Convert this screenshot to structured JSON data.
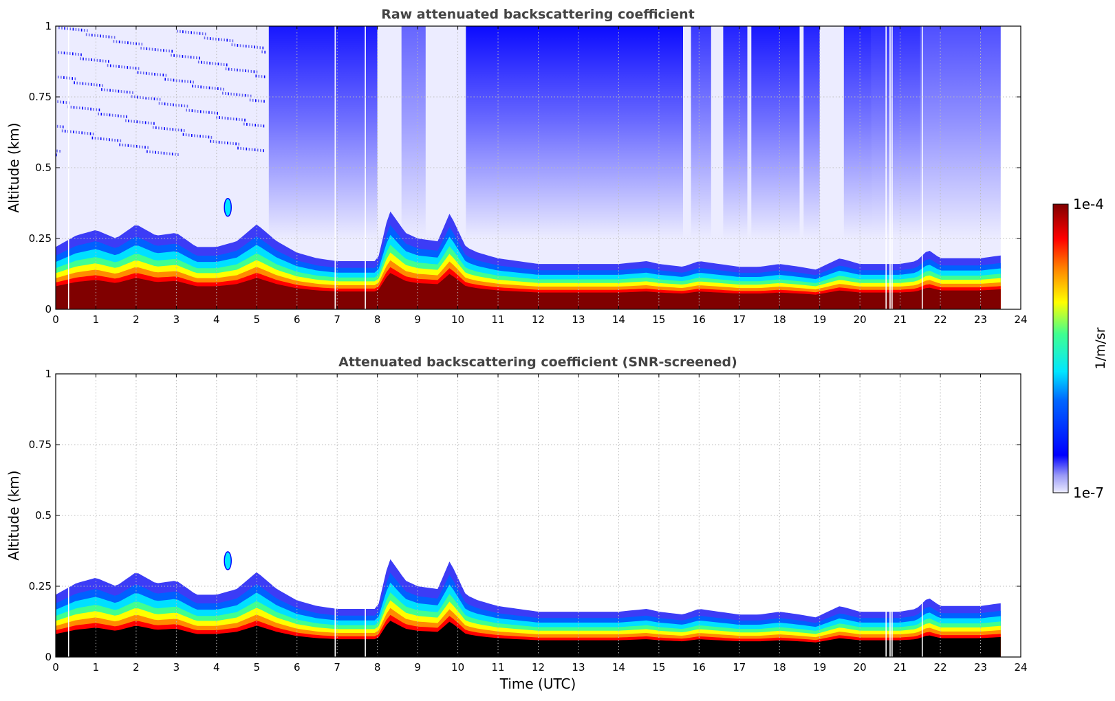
{
  "chart_data": [
    {
      "type": "heatmap",
      "title": "Raw attenuated backscattering coefficient",
      "xlabel": "",
      "ylabel": "Altitude (km)",
      "xlim": [
        0,
        24
      ],
      "ylim": [
        0,
        1
      ],
      "x_ticks": [
        "0",
        "1",
        "2",
        "3",
        "4",
        "5",
        "6",
        "7",
        "8",
        "9",
        "10",
        "11",
        "12",
        "13",
        "14",
        "15",
        "16",
        "17",
        "18",
        "19",
        "20",
        "21",
        "22",
        "23",
        "24"
      ],
      "y_ticks": [
        "0",
        "0.25",
        "0.5",
        "0.75",
        "1"
      ],
      "grid": true,
      "data_end_hour": 23.5,
      "boundary_layer_top_km": {
        "x": [
          0,
          0.5,
          1,
          1.5,
          2,
          2.5,
          3,
          3.5,
          4,
          4.5,
          5,
          5.5,
          6,
          6.5,
          7,
          7.5,
          8,
          8.3,
          8.7,
          9,
          9.5,
          9.8,
          10.2,
          10.5,
          11,
          12,
          13,
          14,
          14.7,
          15,
          15.6,
          16,
          16.5,
          17,
          17.5,
          18,
          18.5,
          18.9,
          19.5,
          20,
          20.5,
          21,
          21.4,
          21.7,
          22,
          23,
          23.5
        ],
        "y": [
          0.22,
          0.26,
          0.28,
          0.25,
          0.3,
          0.26,
          0.27,
          0.22,
          0.22,
          0.24,
          0.3,
          0.24,
          0.2,
          0.18,
          0.17,
          0.17,
          0.17,
          0.35,
          0.27,
          0.25,
          0.24,
          0.34,
          0.22,
          0.2,
          0.18,
          0.16,
          0.16,
          0.16,
          0.17,
          0.16,
          0.15,
          0.17,
          0.16,
          0.15,
          0.15,
          0.16,
          0.15,
          0.14,
          0.18,
          0.16,
          0.16,
          0.16,
          0.17,
          0.21,
          0.18,
          0.18,
          0.19
        ]
      }
    },
    {
      "type": "heatmap",
      "title": "Attenuated backscattering coefficient (SNR-screened)",
      "xlabel": "Time (UTC)",
      "ylabel": "Altitude (km)",
      "xlim": [
        0,
        24
      ],
      "ylim": [
        0,
        1
      ],
      "x_ticks": [
        "0",
        "1",
        "2",
        "3",
        "4",
        "5",
        "6",
        "7",
        "8",
        "9",
        "10",
        "11",
        "12",
        "13",
        "14",
        "15",
        "16",
        "17",
        "18",
        "19",
        "20",
        "21",
        "22",
        "23",
        "24"
      ],
      "y_ticks": [
        "0",
        "0.25",
        "0.5",
        "0.75",
        "1"
      ],
      "grid": true,
      "data_end_hour": 23.5
    }
  ],
  "colorbar": {
    "label": "1/m/sr",
    "max_label": "1e-4",
    "min_label": "1e-7",
    "colormap": "jet",
    "scale": "log"
  },
  "colors": {
    "low": "#e8e8ff",
    "blue": "#0000ff",
    "cyan": "#00ffff",
    "yellow": "#ffff00",
    "red": "#ff0000",
    "darkred": "#800000",
    "black": "#000000"
  }
}
